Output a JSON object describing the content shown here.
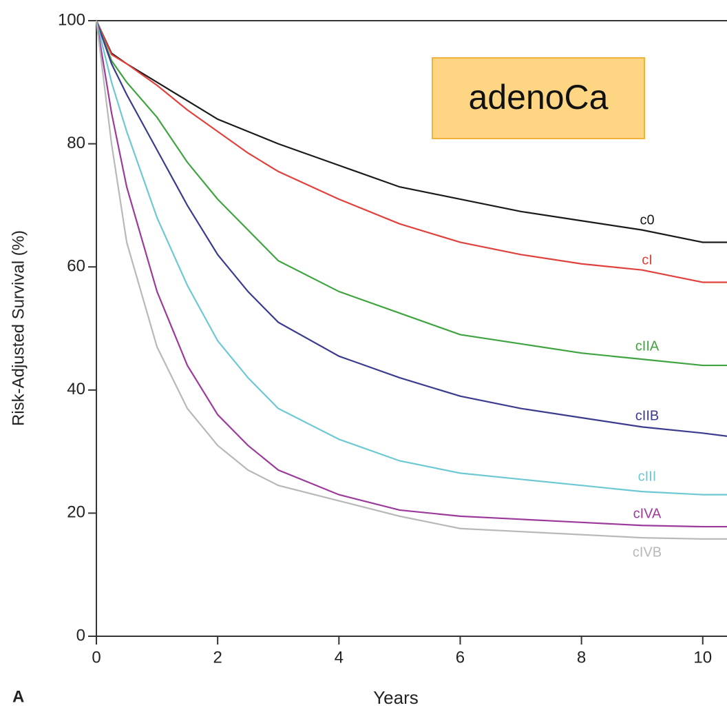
{
  "chart_data": {
    "type": "line",
    "x_label": "Years",
    "y_label": "Risk-Adjusted Survival (%)",
    "panel_label": "A",
    "annotation": "adenoCa",
    "x": [
      0,
      0.25,
      0.5,
      1,
      1.5,
      2,
      2.5,
      3,
      4,
      5,
      6,
      7,
      8,
      9,
      10,
      10.4
    ],
    "xlim": [
      0,
      10.4
    ],
    "xticks": [
      0,
      2,
      4,
      6,
      8,
      10
    ],
    "ylim": [
      0,
      100
    ],
    "yticks": [
      0,
      20,
      40,
      60,
      80,
      100
    ],
    "series": [
      {
        "name": "c0",
        "color": "#1a1a1a",
        "values": [
          100,
          94.7,
          93,
          90,
          87,
          84,
          82,
          80,
          76.5,
          73,
          71,
          69,
          67.5,
          66,
          64,
          64
        ]
      },
      {
        "name": "cI",
        "color": "#e0413c",
        "values": [
          100,
          94.5,
          93,
          89.5,
          85.5,
          82,
          78.5,
          75.5,
          71,
          67,
          64,
          62,
          60.5,
          59.5,
          57.5,
          57.5
        ]
      },
      {
        "name": "cIIA",
        "color": "#3fa33f",
        "values": [
          100,
          93.5,
          90,
          84.3,
          77,
          71,
          66,
          61,
          56,
          52.5,
          49,
          47.5,
          46,
          45,
          44,
          44
        ]
      },
      {
        "name": "cIIB",
        "color": "#3a3a8e",
        "values": [
          100,
          93,
          88,
          79,
          70,
          62,
          56,
          51,
          45.5,
          42,
          39,
          37,
          35.5,
          34,
          33,
          32.5
        ]
      },
      {
        "name": "cIII",
        "color": "#6cc8d2",
        "values": [
          100,
          90,
          82,
          68,
          57,
          48,
          42,
          37,
          32,
          28.5,
          26.5,
          25.5,
          24.5,
          23.5,
          23,
          23
        ]
      },
      {
        "name": "cIVA",
        "color": "#9b3a9b",
        "values": [
          100,
          85,
          73,
          56,
          44,
          36,
          31,
          27,
          23,
          20.5,
          19.5,
          19,
          18.5,
          18,
          17.8,
          17.8
        ]
      },
      {
        "name": "cIVB",
        "color": "#b8b8b8",
        "values": [
          100,
          80,
          64,
          47,
          37,
          31,
          27,
          24.5,
          22,
          19.5,
          17.5,
          17,
          16.5,
          16,
          15.8,
          15.8
        ]
      }
    ]
  }
}
